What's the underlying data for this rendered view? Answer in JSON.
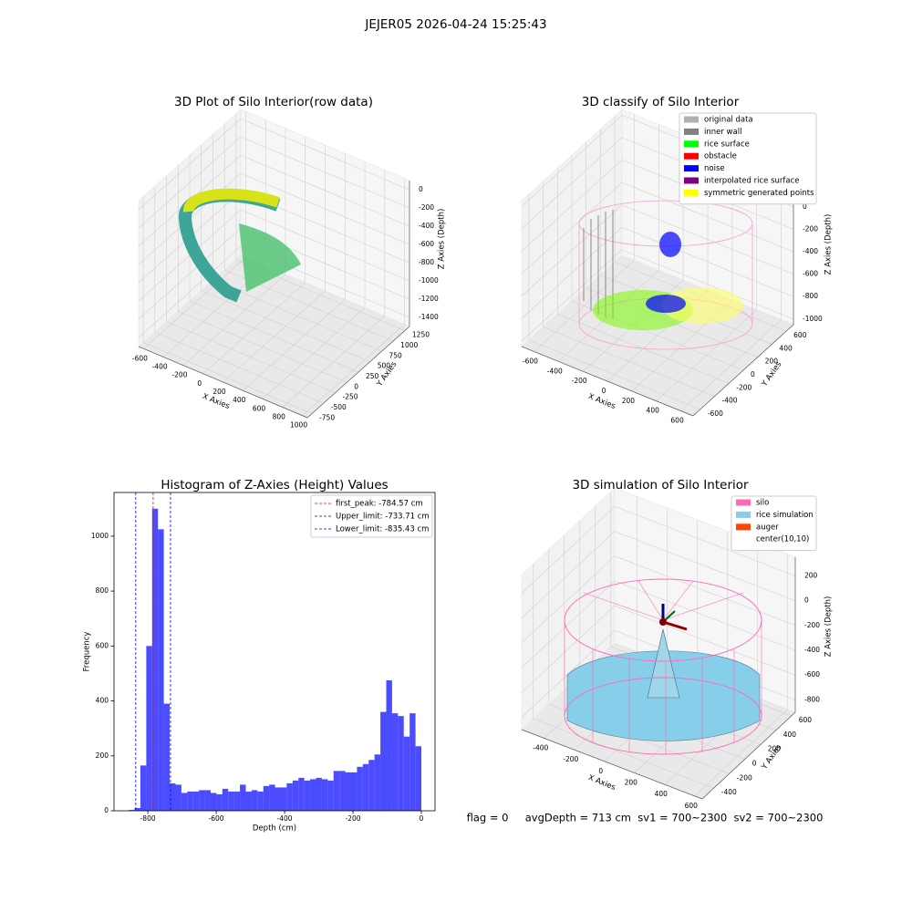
{
  "title": "JEJER05 2026-04-24 15:25:43",
  "footer": "flag = 0     avgDepth = 713 cm  sv1 = 700~2300  sv2 = 700~2300",
  "chart_data": [
    {
      "type": "scatter3d",
      "title": "3D Plot of Silo Interior(row data)",
      "xlabel": "X Axies",
      "ylabel": "Y Axies",
      "zlabel": "Z Axies (Depth)",
      "xlim": [
        -650,
        1050
      ],
      "xticks": [
        -600,
        -400,
        -200,
        0,
        200,
        400,
        600,
        800,
        1000
      ],
      "ylim": [
        -850,
        1350
      ],
      "yticks": [
        -750,
        -500,
        -250,
        0,
        250,
        500,
        750,
        1000,
        1250
      ],
      "zlim": [
        -1500,
        100
      ],
      "zticks": [
        -1400,
        -1200,
        -1000,
        -800,
        -600,
        -400,
        -200,
        0
      ]
    },
    {
      "type": "scatter3d",
      "title": "3D classify of Silo Interior",
      "xlabel": "X Axies",
      "ylabel": "Y Axies",
      "zlabel": "Z Axies (Depth)",
      "xlim": [
        -700,
        700
      ],
      "xticks": [
        -600,
        -400,
        -200,
        0,
        200,
        400,
        600
      ],
      "ylim": [
        -700,
        700
      ],
      "yticks": [
        -600,
        -400,
        -200,
        0,
        200,
        400,
        600
      ],
      "zlim": [
        -1050,
        250
      ],
      "zticks": [
        -1000,
        -800,
        -600,
        -400,
        -200,
        0,
        200
      ],
      "legend": [
        {
          "name": "original data",
          "color": "#b0b0b0"
        },
        {
          "name": "inner wall",
          "color": "#808080"
        },
        {
          "name": "rice surface",
          "color": "#00ff00"
        },
        {
          "name": "obstacle",
          "color": "#ff0000"
        },
        {
          "name": "noise",
          "color": "#0000ff"
        },
        {
          "name": "interpolated rice surface",
          "color": "#800080"
        },
        {
          "name": "symmetric generated points",
          "color": "#ffff00"
        }
      ]
    },
    {
      "type": "histogram",
      "title": "Histogram of Z-Axies (Height) Values",
      "xlabel": "Depth (cm)",
      "ylabel": "Frequency",
      "color": "#0000ff",
      "alpha": 0.7,
      "bins": [
        -856,
        -838.9,
        -821.8,
        -804.6,
        -787.5,
        -770.4,
        -753.3,
        -736.2,
        -719.0,
        -701.9,
        -684.8,
        -667.7,
        -650.6,
        -633.4,
        -616.3,
        -599.2,
        -582.1,
        -565.0,
        -547.8,
        -530.7,
        -513.6,
        -496.5,
        -479.4,
        -462.2,
        -445.1,
        -428.0,
        -410.9,
        -393.8,
        -376.6,
        -359.5,
        -342.4,
        -325.3,
        -308.2,
        -291.0,
        -273.9,
        -256.8,
        -239.7,
        -222.6,
        -205.4,
        -188.3,
        -171.2,
        -154.1,
        -137.0,
        -119.8,
        -102.7,
        -85.6,
        -68.5,
        -51.4,
        -34.2,
        -17.1,
        0
      ],
      "counts": [
        3,
        10,
        165,
        600,
        1100,
        1025,
        390,
        100,
        95,
        65,
        70,
        70,
        75,
        75,
        65,
        60,
        80,
        70,
        70,
        95,
        70,
        75,
        70,
        90,
        95,
        85,
        85,
        100,
        110,
        120,
        110,
        115,
        120,
        115,
        110,
        145,
        145,
        140,
        140,
        160,
        170,
        185,
        205,
        360,
        475,
        355,
        345,
        270,
        355,
        235
      ],
      "xlim": [
        -899,
        40
      ],
      "xticks": [
        -800,
        -600,
        -400,
        -200,
        0
      ],
      "ylim": [
        0,
        1159
      ],
      "yticks": [
        0,
        200,
        400,
        600,
        800,
        1000
      ],
      "vlines": [
        {
          "name": "first_peak: -784.57 cm",
          "value": -784.57,
          "color": "#ff0000"
        },
        {
          "name": "Upper_limit: -733.71 cm",
          "value": -733.71,
          "color": "#0000ff"
        },
        {
          "name": "Lower_limit: -835.43 cm",
          "value": -835.43,
          "color": "#0000ff"
        }
      ],
      "legend_loc": "upper right"
    },
    {
      "type": "surface3d",
      "title": "3D simulation of Silo Interior",
      "xlabel": "X Axies",
      "ylabel": "Y Axies",
      "zlabel": "Z Axies (Depth)",
      "xlim": [
        -550,
        650
      ],
      "xticks": [
        -400,
        -200,
        0,
        200,
        400,
        600
      ],
      "ylim": [
        -550,
        650
      ],
      "yticks": [
        -400,
        -200,
        0,
        200,
        400,
        600
      ],
      "zlim": [
        -900,
        350
      ],
      "zticks": [
        -800,
        -600,
        -400,
        -200,
        0,
        200
      ],
      "legend": [
        {
          "name": "silo",
          "color": "#ff69b4"
        },
        {
          "name": "rice simulation",
          "color": "#87ceeb"
        },
        {
          "name": "auger",
          "color": "#ff4500"
        },
        {
          "name": "center(10,10)",
          "color": "#ffffff"
        }
      ]
    }
  ]
}
